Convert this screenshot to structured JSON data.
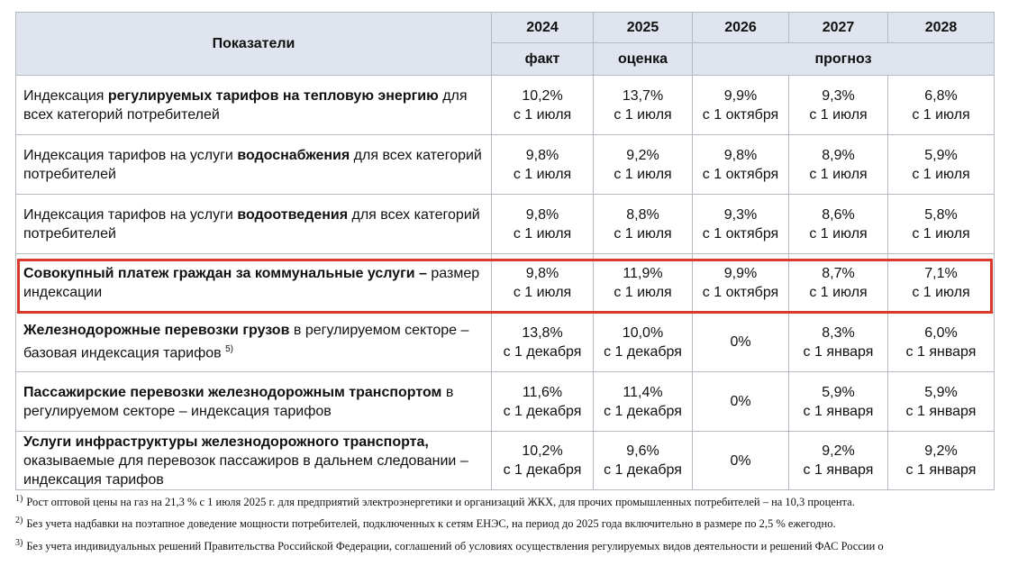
{
  "header": {
    "title": "Показатели",
    "years": [
      "2024",
      "2025",
      "2026",
      "2027",
      "2028"
    ],
    "status": [
      "факт",
      "оценка",
      "прогноз"
    ]
  },
  "rows": [
    {
      "label": [
        {
          "text": "Индексация ",
          "bold": false
        },
        {
          "text": "регулируемых тарифов на тепловую энергию",
          "bold": true
        },
        {
          "text": " для всех категорий потребителей",
          "bold": false
        }
      ],
      "cells": [
        {
          "value": "10,2%",
          "date": "с 1 июля"
        },
        {
          "value": "13,7%",
          "date": "с 1 июля"
        },
        {
          "value": "9,9%",
          "date": "с 1 октября"
        },
        {
          "value": "9,3%",
          "date": "с 1 июля"
        },
        {
          "value": "6,8%",
          "date": "с 1 июля"
        }
      ]
    },
    {
      "label": [
        {
          "text": "Индексация тарифов на услуги ",
          "bold": false
        },
        {
          "text": "водоснабжения",
          "bold": true
        },
        {
          "text": " для всех категорий потребителей",
          "bold": false
        }
      ],
      "cells": [
        {
          "value": "9,8%",
          "date": "с 1 июля"
        },
        {
          "value": "9,2%",
          "date": "с 1 июля"
        },
        {
          "value": "9,8%",
          "date": "с 1 октября"
        },
        {
          "value": "8,9%",
          "date": "с 1 июля"
        },
        {
          "value": "5,9%",
          "date": "с 1 июля"
        }
      ]
    },
    {
      "label": [
        {
          "text": "Индексация тарифов на услуги ",
          "bold": false
        },
        {
          "text": "водоотведения",
          "bold": true
        },
        {
          "text": " для всех категорий потребителей",
          "bold": false
        }
      ],
      "cells": [
        {
          "value": "9,8%",
          "date": "с 1 июля"
        },
        {
          "value": "8,8%",
          "date": "с 1 июля"
        },
        {
          "value": "9,3%",
          "date": "с 1 октября"
        },
        {
          "value": "8,6%",
          "date": "с 1 июля"
        },
        {
          "value": "5,8%",
          "date": "с 1 июля"
        }
      ]
    },
    {
      "label": [
        {
          "text": "Совокупный платеж граждан за коммунальные услуги –",
          "bold": true
        },
        {
          "text": " размер индексации",
          "bold": false
        }
      ],
      "cells": [
        {
          "value": "9,8%",
          "date": "с 1 июля"
        },
        {
          "value": "11,9%",
          "date": "с 1 июля"
        },
        {
          "value": "9,9%",
          "date": "с 1 октября"
        },
        {
          "value": "8,7%",
          "date": "с 1 июля"
        },
        {
          "value": "7,1%",
          "date": "с 1 июля"
        }
      ]
    },
    {
      "label": [
        {
          "text": "Железнодорожные перевозки грузов",
          "bold": true
        },
        {
          "text": " в регулируемом секторе – базовая индексация тарифов ",
          "bold": false
        },
        {
          "text": "5)",
          "sup": true
        }
      ],
      "cells": [
        {
          "value": "13,8%",
          "date": "с 1 декабря"
        },
        {
          "value": "10,0%",
          "date": "с 1 декабря"
        },
        {
          "value": "0%"
        },
        {
          "value": "8,3%",
          "date": "с 1 января"
        },
        {
          "value": "6,0%",
          "date": "с 1 января"
        }
      ]
    },
    {
      "label": [
        {
          "text": "Пассажирские перевозки железнодорожным транспортом",
          "bold": true
        },
        {
          "text": " в регулируемом секторе – индексация тарифов",
          "bold": false
        }
      ],
      "cells": [
        {
          "value": "11,6%",
          "date": "с 1 декабря"
        },
        {
          "value": "11,4%",
          "date": "с 1 декабря"
        },
        {
          "value": "0%"
        },
        {
          "value": "5,9%",
          "date": "с 1 января"
        },
        {
          "value": "5,9%",
          "date": "с 1 января"
        }
      ]
    },
    {
      "label": [
        {
          "text": "Услуги инфраструктуры железнодорожного транспорта,",
          "bold": true
        },
        {
          "text": " оказываемые для перевозок пассажиров в дальнем следовании – индексация тарифов",
          "bold": false
        }
      ],
      "cells": [
        {
          "value": "10,2%",
          "date": "с 1 декабря"
        },
        {
          "value": "9,6%",
          "date": "с 1 декабря"
        },
        {
          "value": "0%"
        },
        {
          "value": "9,2%",
          "date": "с 1 января"
        },
        {
          "value": "9,2%",
          "date": "с 1 января"
        }
      ]
    }
  ],
  "highlight_row": 3,
  "footnotes": [
    {
      "mark": "1)",
      "text": "Рост оптовой цены на газ на 21,3 % с 1 июля 2025 г. для предприятий электроэнергетики и организаций ЖКХ, для прочих промышленных потребителей – на 10,3 процента."
    },
    {
      "mark": "2)",
      "text": "Без учета надбавки на поэтапное доведение мощности потребителей, подключенных к сетям ЕНЭС, на период до 2025 года включительно в размере по 2,5 % ежегодно."
    },
    {
      "mark": "3)",
      "text": "Без учета индивидуальных решений Правительства Российской Федерации, соглашений об условиях осуществления регулируемых видов деятельности и решений ФАС России о"
    }
  ]
}
